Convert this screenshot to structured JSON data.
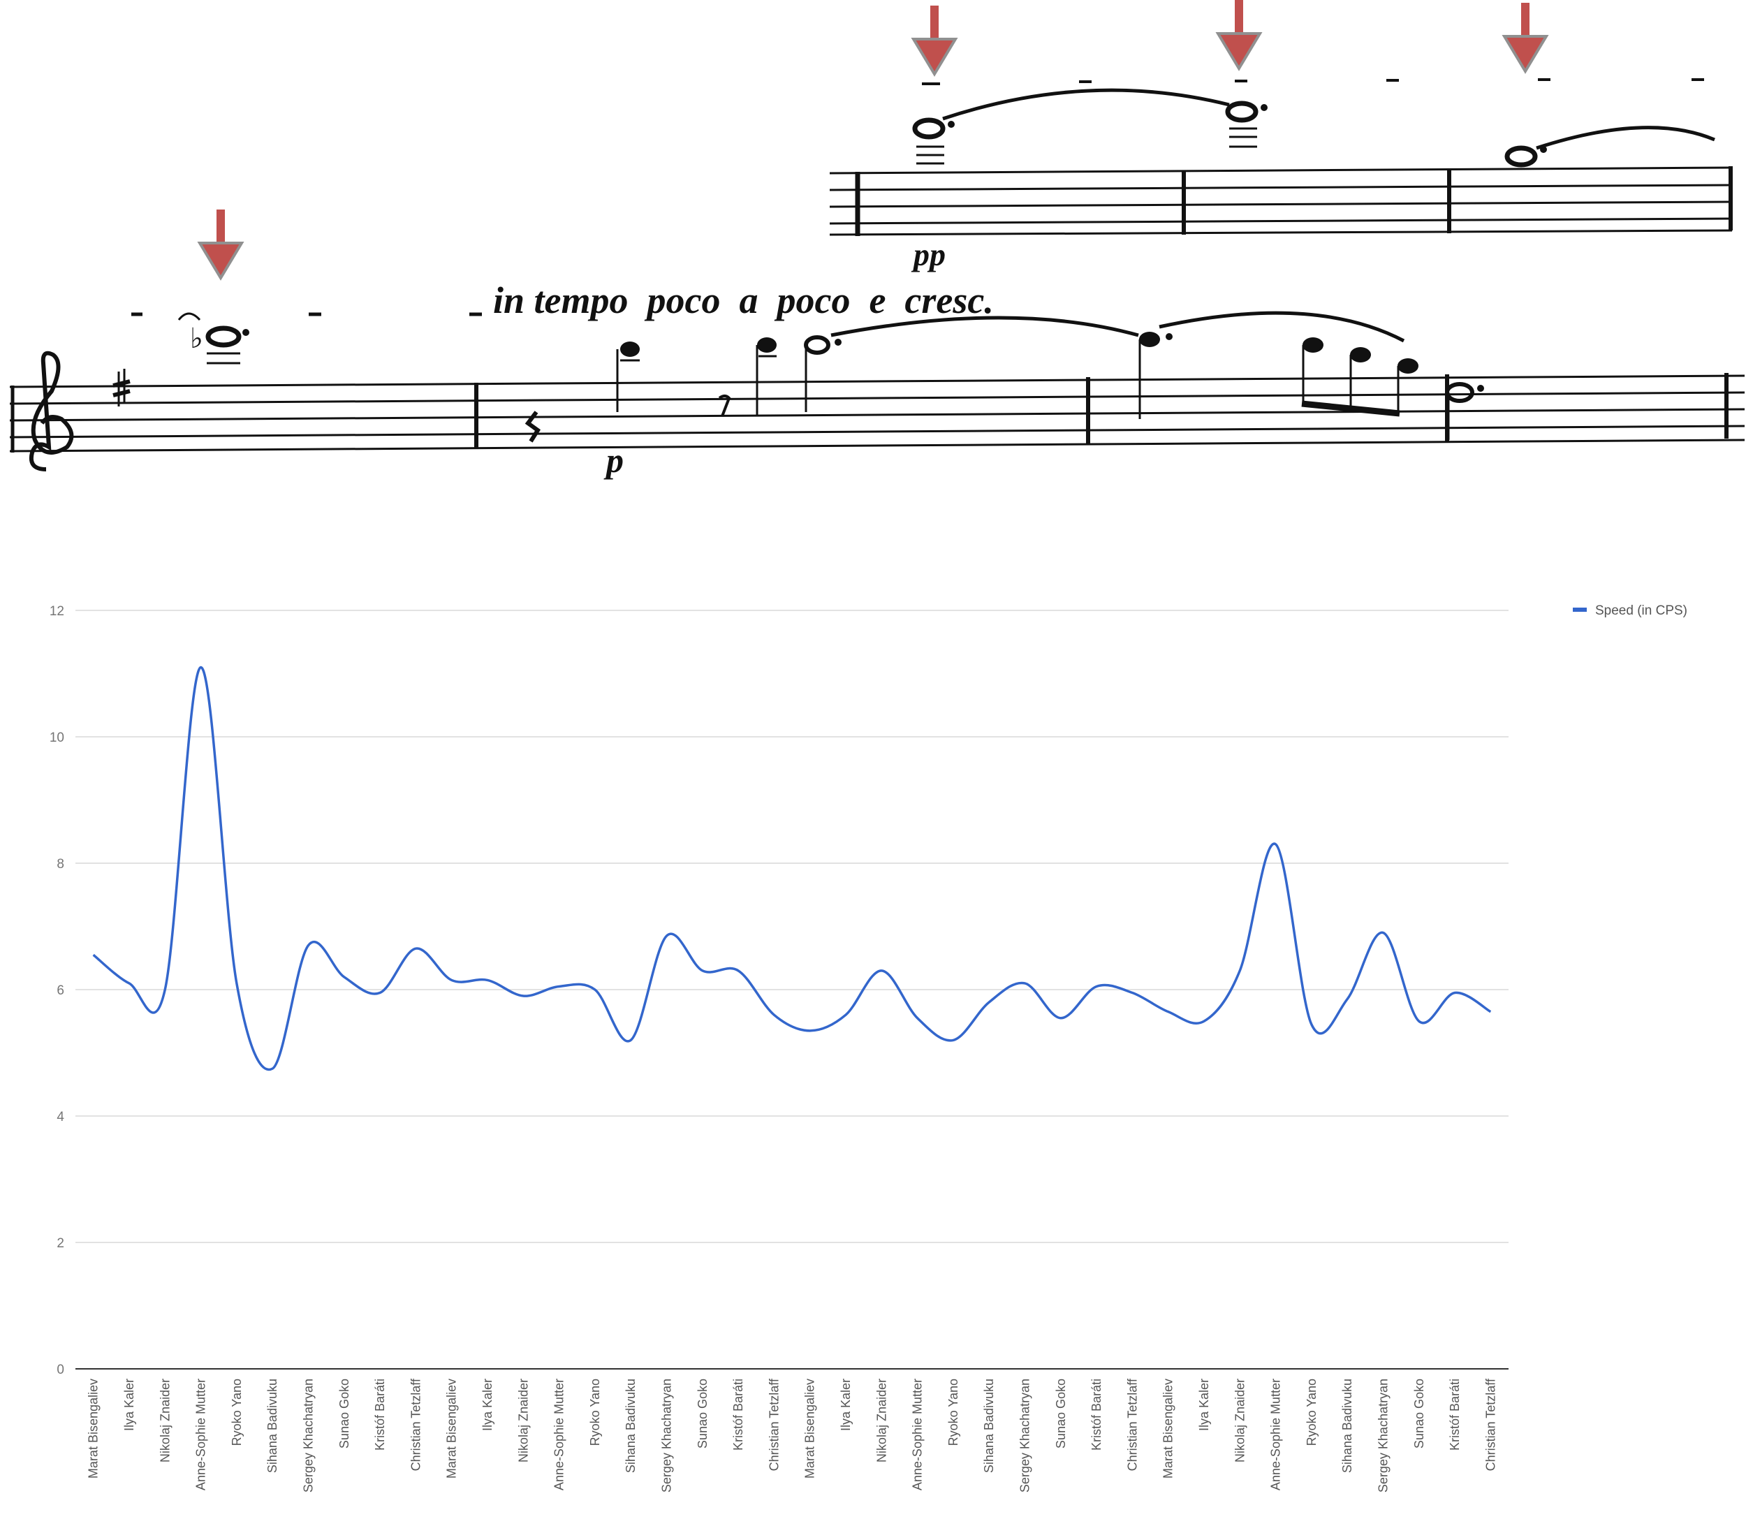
{
  "score": {
    "expression": "in tempo  poco  a  poco  e  cresc.",
    "dynamic_pp": "pp",
    "dynamic_p": "p",
    "arrow_color": "#c0504d"
  },
  "chart_data": {
    "type": "line",
    "title": "",
    "xlabel": "",
    "ylabel": "",
    "ylim": [
      0,
      12
    ],
    "yticks": [
      "0",
      "2",
      "4",
      "6",
      "8",
      "10",
      "12"
    ],
    "grid": true,
    "legend_position": "top-right",
    "categories": [
      "Marat Bisengaliev",
      "Ilya Kaler",
      "Nikolaj Znaider",
      "Anne-Sophie Mutter",
      "Ryoko Yano",
      "Sihana Badivuku",
      "Sergey Khachatryan",
      "Sunao Goko",
      "Kristóf Baráti",
      "Christian Tetzlaff",
      "Marat Bisengaliev",
      "Ilya Kaler",
      "Nikolaj Znaider",
      "Anne-Sophie Mutter",
      "Ryoko Yano",
      "Sihana Badivuku",
      "Sergey Khachatryan",
      "Sunao Goko",
      "Kristóf Baráti",
      "Christian Tetzlaff",
      "Marat Bisengaliev",
      "Ilya Kaler",
      "Nikolaj Znaider",
      "Anne-Sophie Mutter",
      "Ryoko Yano",
      "Sihana Badivuku",
      "Sergey Khachatryan",
      "Sunao Goko",
      "Kristóf Baráti",
      "Christian Tetzlaff",
      "Marat Bisengaliev",
      "Ilya Kaler",
      "Nikolaj Znaider",
      "Anne-Sophie Mutter",
      "Ryoko Yano",
      "Sihana Badivuku",
      "Sergey Khachatryan",
      "Sunao Goko",
      "Kristóf Baráti",
      "Christian Tetzlaff"
    ],
    "series": [
      {
        "name": "Speed (in CPS)",
        "color": "#3366cc",
        "values": [
          6.55,
          6.1,
          6.0,
          11.1,
          6.1,
          4.75,
          6.7,
          6.2,
          5.95,
          6.65,
          6.15,
          6.15,
          5.9,
          6.05,
          6.0,
          5.2,
          6.85,
          6.3,
          6.3,
          5.6,
          5.35,
          5.6,
          6.3,
          5.55,
          5.2,
          5.8,
          6.1,
          5.55,
          6.05,
          5.95,
          5.65,
          5.5,
          6.3,
          8.3,
          5.45,
          5.85,
          6.9,
          5.5,
          5.95,
          5.65
        ]
      }
    ]
  }
}
